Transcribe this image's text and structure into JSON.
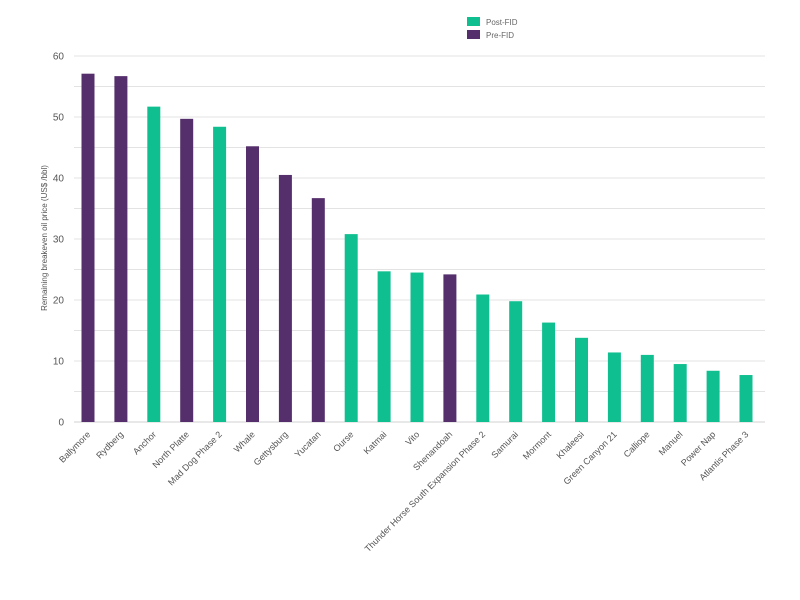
{
  "chart_data": {
    "type": "bar",
    "title": "",
    "xlabel": "",
    "ylabel": "Remaining breakeven oil price (US$ /bbl)",
    "ylim": [
      0,
      60
    ],
    "yticks": [
      0,
      10,
      20,
      30,
      40,
      50,
      60
    ],
    "grid": true,
    "legend_position": "top-right",
    "series_legend": [
      {
        "name": "Post-FID",
        "color": "#10bf8f"
      },
      {
        "name": "Pre-FID",
        "color": "#542f6b"
      }
    ],
    "categories": [
      "Ballymore",
      "Rydberg",
      "Anchor",
      "North Platte",
      "Mad Dog Phase 2",
      "Whale",
      "Gettysburg",
      "Yucatan",
      "Ourse",
      "Katmai",
      "Vito",
      "Shenandoah",
      "Thunder Horse South Expansion Phase 2",
      "Samurai",
      "Mormont",
      "Khaleesi",
      "Green Canyon 21",
      "Calliope",
      "Manuel",
      "Power Nap",
      "Atlantis Phase 3"
    ],
    "values": [
      57.1,
      56.7,
      51.7,
      49.7,
      48.4,
      45.2,
      40.5,
      36.7,
      30.8,
      24.7,
      24.5,
      24.2,
      20.9,
      19.8,
      16.3,
      13.8,
      11.4,
      11.0,
      9.5,
      8.4,
      7.7
    ],
    "groups": [
      "Pre-FID",
      "Pre-FID",
      "Post-FID",
      "Pre-FID",
      "Post-FID",
      "Pre-FID",
      "Pre-FID",
      "Pre-FID",
      "Post-FID",
      "Post-FID",
      "Post-FID",
      "Pre-FID",
      "Post-FID",
      "Post-FID",
      "Post-FID",
      "Post-FID",
      "Post-FID",
      "Post-FID",
      "Post-FID",
      "Post-FID",
      "Post-FID"
    ]
  }
}
